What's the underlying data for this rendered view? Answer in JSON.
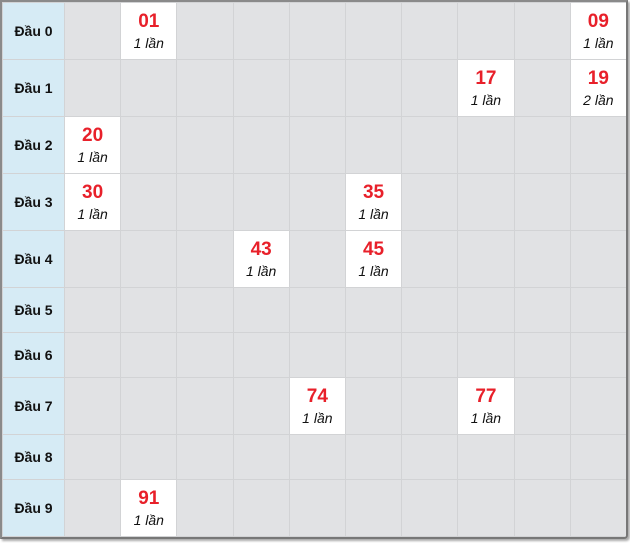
{
  "rows": [
    {
      "label": "Đầu 0",
      "cells": [
        null,
        {
          "num": "01",
          "count": "1 lần"
        },
        null,
        null,
        null,
        null,
        null,
        null,
        null,
        {
          "num": "09",
          "count": "1 lần"
        }
      ]
    },
    {
      "label": "Đầu 1",
      "cells": [
        null,
        null,
        null,
        null,
        null,
        null,
        null,
        {
          "num": "17",
          "count": "1 lần"
        },
        null,
        {
          "num": "19",
          "count": "2 lần"
        }
      ]
    },
    {
      "label": "Đầu 2",
      "cells": [
        {
          "num": "20",
          "count": "1 lần"
        },
        null,
        null,
        null,
        null,
        null,
        null,
        null,
        null,
        null
      ]
    },
    {
      "label": "Đầu 3",
      "cells": [
        {
          "num": "30",
          "count": "1 lần"
        },
        null,
        null,
        null,
        null,
        {
          "num": "35",
          "count": "1 lần"
        },
        null,
        null,
        null,
        null
      ]
    },
    {
      "label": "Đầu 4",
      "cells": [
        null,
        null,
        null,
        {
          "num": "43",
          "count": "1 lần"
        },
        null,
        {
          "num": "45",
          "count": "1 lần"
        },
        null,
        null,
        null,
        null
      ]
    },
    {
      "label": "Đầu 5",
      "cells": [
        null,
        null,
        null,
        null,
        null,
        null,
        null,
        null,
        null,
        null
      ]
    },
    {
      "label": "Đầu 6",
      "cells": [
        null,
        null,
        null,
        null,
        null,
        null,
        null,
        null,
        null,
        null
      ]
    },
    {
      "label": "Đầu 7",
      "cells": [
        null,
        null,
        null,
        null,
        {
          "num": "74",
          "count": "1 lần"
        },
        null,
        null,
        {
          "num": "77",
          "count": "1 lần"
        },
        null,
        null
      ]
    },
    {
      "label": "Đầu 8",
      "cells": [
        null,
        null,
        null,
        null,
        null,
        null,
        null,
        null,
        null,
        null
      ]
    },
    {
      "label": "Đầu 9",
      "cells": [
        null,
        {
          "num": "91",
          "count": "1 lần"
        },
        null,
        null,
        null,
        null,
        null,
        null,
        null,
        null
      ]
    }
  ],
  "colors": {
    "number": "#e8202a",
    "header_bg": "#d6ebf5",
    "empty_bg": "#e1e2e4",
    "hit_bg": "#ffffff"
  }
}
